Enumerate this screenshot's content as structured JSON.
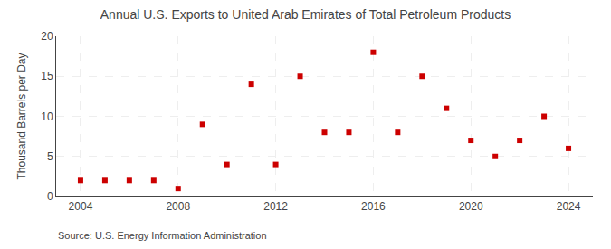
{
  "chart_data": {
    "type": "scatter",
    "title": "Annual U.S. Exports to United Arab Emirates of Total Petroleum Products",
    "ylabel": "Thousand Barrels per Day",
    "annotations": [
      "Source: U.S. Energy Information Administration"
    ],
    "x": [
      2004,
      2005,
      2006,
      2007,
      2008,
      2009,
      2010,
      2011,
      2012,
      2013,
      2014,
      2015,
      2016,
      2017,
      2018,
      2019,
      2020,
      2021,
      2022,
      2023,
      2024
    ],
    "values": [
      2,
      2,
      2,
      2,
      1,
      9,
      4,
      14,
      4,
      15,
      8,
      8,
      18,
      8,
      15,
      11,
      7,
      5,
      7,
      10,
      6
    ],
    "color": "#cc0000",
    "marker": "square",
    "xlim": [
      2003,
      2025
    ],
    "xticks": [
      2004,
      2008,
      2012,
      2016,
      2020,
      2024
    ],
    "ylim": [
      0,
      20
    ],
    "yticks": [
      0,
      5,
      10,
      15,
      20
    ],
    "grid": true
  }
}
